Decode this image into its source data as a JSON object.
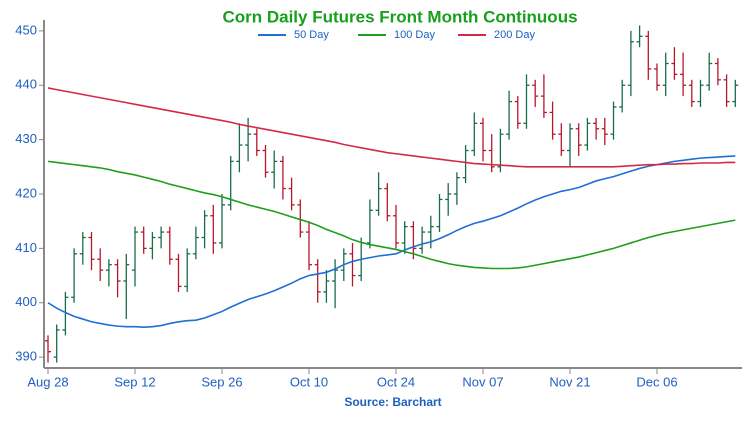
{
  "chart_data": {
    "type": "ohlc",
    "title": "Corn Daily Futures Front Month Continuous",
    "source": "Source: Barchart",
    "categories": [
      "Aug 28",
      null,
      null,
      null,
      null,
      null,
      null,
      null,
      null,
      null,
      "Sep 12",
      null,
      null,
      null,
      null,
      null,
      null,
      null,
      null,
      null,
      "Sep 26",
      null,
      null,
      null,
      null,
      null,
      null,
      null,
      null,
      null,
      "Oct 10",
      null,
      null,
      null,
      null,
      null,
      null,
      null,
      null,
      null,
      "Oct 24",
      null,
      null,
      null,
      null,
      null,
      null,
      null,
      null,
      null,
      "Nov 07",
      null,
      null,
      null,
      null,
      null,
      null,
      null,
      null,
      null,
      "Nov 21",
      null,
      null,
      null,
      null,
      null,
      null,
      null,
      null,
      null,
      "Dec 06",
      null,
      null,
      null,
      null,
      null,
      null,
      null,
      null,
      null
    ],
    "up_color": "#1a6b4a",
    "down_color": "#b5182b",
    "open": [
      393,
      390,
      395,
      401,
      409,
      412,
      408,
      406,
      407,
      404,
      406,
      413,
      410,
      412,
      413,
      408,
      403,
      409,
      412,
      416,
      411,
      418,
      426,
      429,
      431,
      428,
      424,
      426,
      421,
      418,
      413,
      407,
      402,
      404,
      406,
      409,
      405,
      411,
      417,
      421,
      416,
      411,
      414,
      410,
      413,
      414,
      419,
      420,
      423,
      428,
      433,
      428,
      425,
      431,
      437,
      433,
      440,
      438,
      435,
      431,
      428,
      432,
      429,
      433,
      432,
      431,
      436,
      440,
      448,
      449,
      443,
      440,
      444,
      442,
      440,
      437,
      440,
      444,
      441,
      437
    ],
    "high": [
      394,
      396,
      402,
      410,
      413,
      413,
      410,
      408,
      408,
      409,
      414,
      414,
      413,
      414,
      414,
      409,
      410,
      414,
      417,
      418,
      420,
      427,
      433,
      434,
      432,
      429,
      428,
      427,
      423,
      419,
      415,
      408,
      406,
      408,
      410,
      411,
      412,
      419,
      424,
      422,
      418,
      415,
      415,
      414,
      416,
      420,
      422,
      424,
      429,
      435,
      434,
      431,
      432,
      439,
      438,
      442,
      441,
      442,
      437,
      433,
      433,
      433,
      434,
      434,
      434,
      437,
      441,
      450,
      451,
      450,
      444,
      446,
      447,
      446,
      441,
      441,
      446,
      445,
      442,
      441
    ],
    "low": [
      389,
      389,
      394,
      400,
      407,
      406,
      404,
      403,
      401,
      397,
      403,
      409,
      408,
      410,
      407,
      402,
      402,
      408,
      410,
      409,
      410,
      417,
      424,
      426,
      427,
      423,
      421,
      419,
      417,
      412,
      406,
      400,
      400,
      399,
      404,
      403,
      404,
      410,
      416,
      415,
      410,
      409,
      408,
      409,
      410,
      413,
      416,
      418,
      422,
      427,
      426,
      424,
      424,
      430,
      432,
      432,
      436,
      434,
      430,
      427,
      425,
      427,
      428,
      430,
      429,
      430,
      435,
      438,
      447,
      441,
      439,
      438,
      441,
      438,
      436,
      436,
      439,
      440,
      436,
      436
    ],
    "close": [
      391,
      395,
      401,
      409,
      412,
      408,
      406,
      407,
      404,
      407,
      413,
      410,
      412,
      413,
      408,
      403,
      409,
      412,
      416,
      411,
      418,
      426,
      429,
      431,
      428,
      424,
      426,
      421,
      418,
      413,
      407,
      402,
      404,
      406,
      409,
      405,
      411,
      417,
      421,
      416,
      411,
      414,
      410,
      413,
      414,
      419,
      420,
      423,
      428,
      433,
      428,
      425,
      431,
      437,
      433,
      440,
      438,
      435,
      431,
      428,
      432,
      429,
      433,
      432,
      431,
      436,
      440,
      448,
      449,
      443,
      440,
      444,
      442,
      440,
      437,
      440,
      444,
      441,
      437,
      440
    ],
    "series": [
      {
        "name": "50 Day",
        "color": "#1f6fd6",
        "values": [
          400,
          399,
          398.2,
          397.5,
          397,
          396.5,
          396.2,
          395.9,
          395.7,
          395.6,
          395.6,
          395.5,
          395.6,
          395.8,
          396.2,
          396.5,
          396.7,
          396.8,
          397.2,
          397.8,
          398.4,
          399.2,
          399.9,
          400.6,
          401.1,
          401.6,
          402.2,
          402.9,
          403.6,
          404.4,
          405,
          405.3,
          405.6,
          406.2,
          407,
          407.6,
          408,
          408.3,
          408.6,
          408.8,
          409,
          409.7,
          410.3,
          410.8,
          411.2,
          411.8,
          412.5,
          413.3,
          414,
          414.6,
          415,
          415.5,
          416,
          416.7,
          417.4,
          418.2,
          418.9,
          419.5,
          420,
          420.5,
          420.8,
          421.2,
          421.8,
          422.4,
          422.8,
          423.2,
          423.7,
          424.2,
          424.7,
          425.1,
          425.4,
          425.7,
          426,
          426.2,
          426.4,
          426.6,
          426.7,
          426.8,
          426.9,
          427
        ]
      },
      {
        "name": "100 Day",
        "color": "#1ea01e",
        "values": [
          426,
          425.8,
          425.6,
          425.4,
          425.2,
          425,
          424.8,
          424.5,
          424.1,
          423.8,
          423.5,
          423.1,
          422.7,
          422.3,
          421.8,
          421.4,
          421,
          420.6,
          420.2,
          419.9,
          419.5,
          419,
          418.5,
          418,
          417.6,
          417.2,
          416.8,
          416.3,
          415.8,
          415.3,
          414.8,
          414.2,
          413.5,
          412.9,
          412.3,
          411.6,
          411.1,
          410.7,
          410.4,
          410.1,
          409.8,
          409.4,
          409,
          408.5,
          408,
          407.6,
          407.2,
          406.9,
          406.7,
          406.5,
          406.4,
          406.3,
          406.3,
          406.3,
          406.4,
          406.6,
          406.9,
          407.2,
          407.5,
          407.8,
          408.1,
          408.4,
          408.8,
          409.2,
          409.6,
          410,
          410.5,
          411,
          411.5,
          412,
          412.4,
          412.8,
          413.1,
          413.4,
          413.7,
          414,
          414.3,
          414.6,
          414.9,
          415.2
        ]
      },
      {
        "name": "200 Day",
        "color": "#d42a4a",
        "values": [
          439.5,
          439.2,
          438.9,
          438.6,
          438.3,
          438,
          437.7,
          437.4,
          437.1,
          436.8,
          436.5,
          436.2,
          435.9,
          435.6,
          435.3,
          435,
          434.7,
          434.4,
          434.1,
          433.8,
          433.5,
          433.2,
          432.8,
          432.5,
          432.2,
          431.9,
          431.6,
          431.3,
          431,
          430.7,
          430.4,
          430.1,
          429.8,
          429.5,
          429.1,
          428.8,
          428.5,
          428.2,
          427.9,
          427.6,
          427.4,
          427.2,
          427,
          426.8,
          426.6,
          426.4,
          426.2,
          426,
          425.8,
          425.6,
          425.5,
          425.4,
          425.3,
          425.2,
          425.1,
          425,
          425,
          425,
          425,
          425,
          425,
          425,
          425,
          425,
          425,
          425,
          425.1,
          425.2,
          425.3,
          425.4,
          425.4,
          425.5,
          425.5,
          425.6,
          425.6,
          425.7,
          425.7,
          425.7,
          425.8,
          425.8
        ]
      }
    ],
    "ylim": [
      388,
      452
    ],
    "yticks": [
      390,
      400,
      410,
      420,
      430,
      440,
      450
    ]
  }
}
